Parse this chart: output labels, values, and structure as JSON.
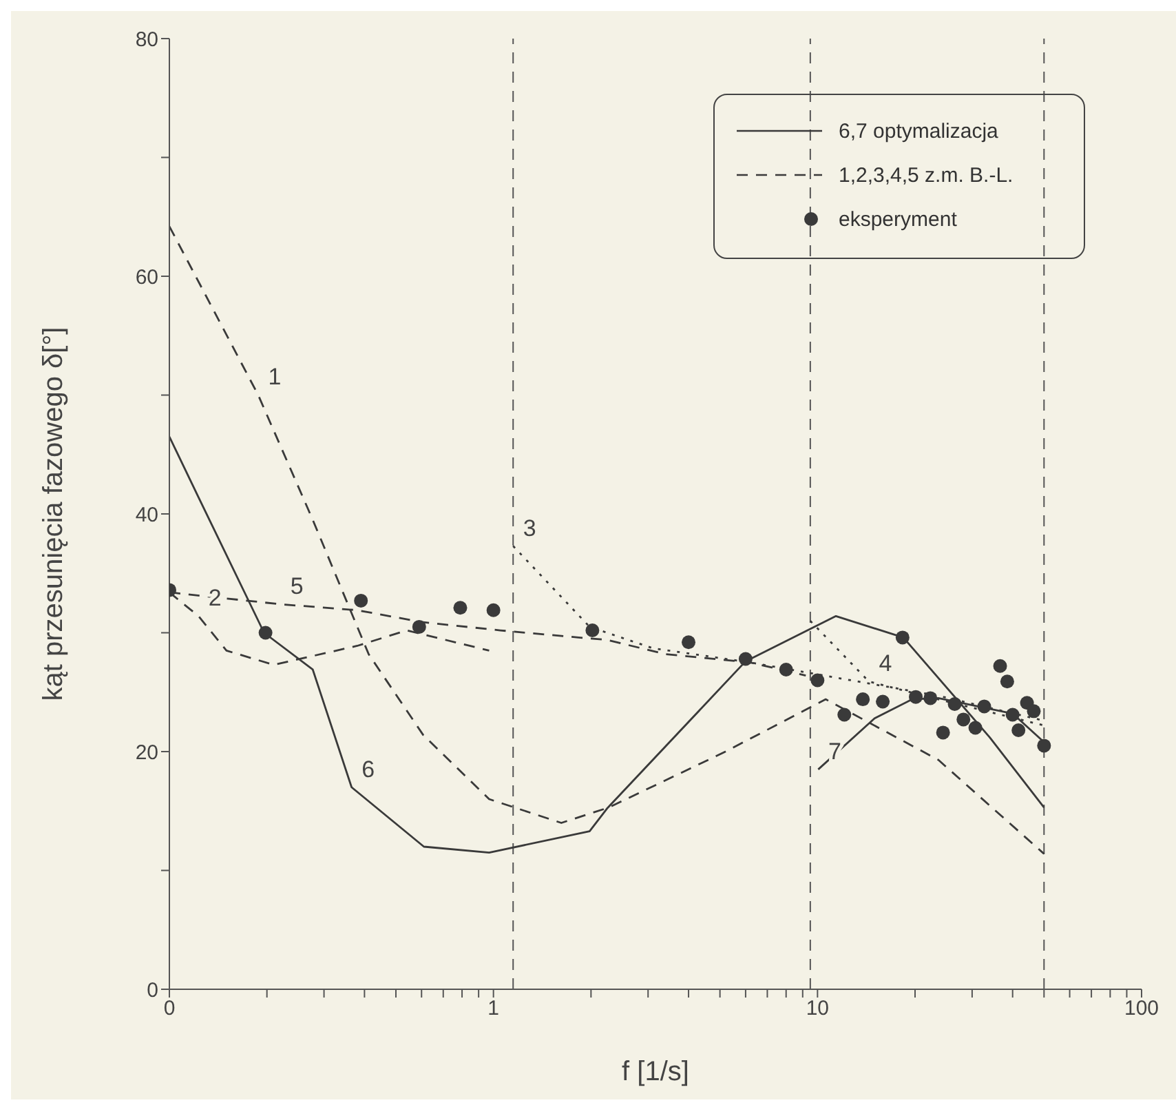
{
  "chart_data": {
    "type": "line",
    "xlabel": "f  [1/s]",
    "ylabel": "kąt przesunięcia fazowego δ[°]",
    "log": "x",
    "xlim": [
      0.1,
      100
    ],
    "ylim": [
      0,
      80
    ],
    "xticks": [
      {
        "value": 0.1,
        "label": "0"
      },
      {
        "value": 0.2,
        "label": null
      },
      {
        "value": 0.3,
        "label": null
      },
      {
        "value": 0.4,
        "label": null
      },
      {
        "value": 0.5,
        "label": null
      },
      {
        "value": 0.6,
        "label": null
      },
      {
        "value": 0.7,
        "label": null
      },
      {
        "value": 0.8,
        "label": null
      },
      {
        "value": 0.9,
        "label": null
      },
      1,
      {
        "value": 2,
        "label": null
      },
      {
        "value": 3,
        "label": null
      },
      {
        "value": 4,
        "label": null
      },
      {
        "value": 5,
        "label": null
      },
      {
        "value": 6,
        "label": null
      },
      {
        "value": 7,
        "label": null
      },
      {
        "value": 8,
        "label": null
      },
      {
        "value": 9,
        "label": null
      },
      10,
      {
        "value": 20,
        "label": null
      },
      {
        "value": 30,
        "label": null
      },
      {
        "value": 40,
        "label": null
      },
      {
        "value": 50,
        "label": null
      },
      {
        "value": 60,
        "label": null
      },
      {
        "value": 70,
        "label": null
      },
      {
        "value": 80,
        "label": null
      },
      {
        "value": 90,
        "label": null
      },
      100
    ],
    "yticks": [
      0,
      {
        "value": 10,
        "label": null
      },
      20,
      {
        "value": 30,
        "label": null
      },
      40,
      {
        "value": 50,
        "label": null
      },
      60,
      {
        "value": 70,
        "label": null
      },
      80
    ],
    "grid": false,
    "legend": "top right",
    "marker": "none",
    "series": [
      {
        "name": "6,7 optymalizacja",
        "color": "#3a3a3a",
        "line_style": "solid",
        "x": [
          0.1,
          0.123,
          0.196,
          0.277,
          0.365,
          0.61,
          0.97,
          1.98,
          2.24,
          6.0,
          11.4,
          18.4,
          34,
          50
        ],
        "values": [
          46.5,
          41.4,
          30,
          26.9,
          17,
          12,
          11.5,
          13.3,
          15.2,
          27.6,
          31.4,
          29.6,
          21.2,
          15.3
        ]
      },
      {
        "color": "#3a3a3a",
        "line_style": "solid",
        "x": [
          10.05,
          15,
          19.6,
          23.6,
          40,
          50
        ],
        "values": [
          18.5,
          22.8,
          24.4,
          24.5,
          23.2,
          20.8
        ]
      },
      {
        "name": "1,2,3,4,5 z.m. B.-L.",
        "color": "#3a3a3a",
        "line_style": "dashed",
        "x": [
          0.1,
          0.188,
          0.277,
          0.412,
          0.607,
          0.97,
          1.62,
          2.27,
          5.2,
          10.6,
          23.6,
          50
        ],
        "values": [
          64.2,
          50,
          39.5,
          28.2,
          21.4,
          16,
          14,
          15.3,
          20,
          24.4,
          19.3,
          11.4
        ]
      },
      {
        "color": "#3a3a3a",
        "line_style": "dashed",
        "x": [
          0.1,
          0.123,
          0.15,
          0.21,
          0.38,
          0.54,
          0.97
        ],
        "values": [
          33.4,
          31.4,
          28.5,
          27.3,
          28.9,
          30.2,
          28.5
        ]
      },
      {
        "color": "#3a3a3a",
        "line_style": "dotted",
        "x": [
          1.15,
          1.98,
          3.1,
          6.2,
          23.6,
          50
        ],
        "values": [
          37.3,
          30.5,
          28.7,
          27.5,
          24.7,
          22.6
        ]
      },
      {
        "color": "#3a3a3a",
        "line_style": "dotted",
        "x": [
          9.5,
          14.4,
          23.6,
          50
        ],
        "values": [
          31,
          25.9,
          24.4,
          22.2
        ]
      },
      {
        "color": "#3a3a3a",
        "line_style": "dashed",
        "x": [
          0.1,
          0.22,
          0.38,
          0.6,
          1.05,
          1.83,
          2.24,
          3.4,
          6.2,
          9.2
        ],
        "values": [
          33.4,
          32.4,
          31.9,
          30.9,
          30.2,
          29.6,
          29.4,
          28.2,
          27.5,
          26.4
        ]
      },
      {
        "name": "eksperyment",
        "type": "scatter",
        "marker": "circle",
        "color": "#3a3a3a",
        "x": [
          0.1,
          0.198,
          0.39,
          0.59,
          0.79,
          1.0,
          2.02,
          4.0,
          6.0,
          8.0,
          10,
          12.1,
          13.8,
          15.9,
          18.3,
          20.1,
          22.3,
          24.4,
          26.5,
          28.2,
          30.7,
          32.7,
          36.6,
          38.5,
          40,
          41.7,
          44.3,
          46.5,
          50
        ],
        "values": [
          33.6,
          30.0,
          32.7,
          30.5,
          32.1,
          31.9,
          30.2,
          29.2,
          27.8,
          26.9,
          26.0,
          23.1,
          24.4,
          24.2,
          29.6,
          24.6,
          24.5,
          21.6,
          24.0,
          22.7,
          22.0,
          23.8,
          27.2,
          25.9,
          23.1,
          21.8,
          24.1,
          23.4,
          20.5
        ]
      }
    ],
    "ref_lines": [
      {
        "axis": "x",
        "value": 1.15,
        "line_style": "dashed"
      },
      {
        "axis": "x",
        "value": 9.5,
        "line_style": "dashed"
      },
      {
        "axis": "x",
        "value": 50,
        "line_style": "dashed"
      }
    ],
    "annotations": [
      {
        "text": "1",
        "x": 0.188,
        "y": 50
      },
      {
        "text": "2",
        "x": 0.123,
        "y": 31.4
      },
      {
        "text": "3",
        "x": 1.15,
        "y": 37.3
      },
      {
        "text": "4",
        "x": 14.4,
        "y": 25.9
      },
      {
        "text": "5",
        "x": 0.22,
        "y": 32.4
      },
      {
        "text": "6",
        "x": 0.365,
        "y": 17
      },
      {
        "text": "7",
        "x": 10.05,
        "y": 18.5
      }
    ]
  }
}
